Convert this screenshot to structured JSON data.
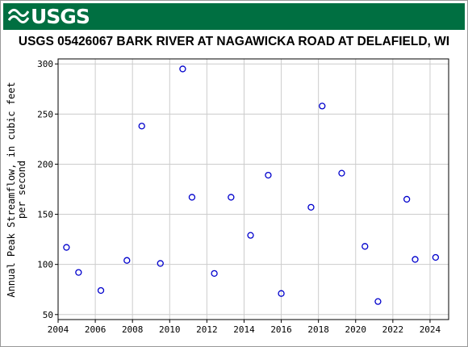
{
  "header": {
    "logo_text": "USGS",
    "brand_color": "#006f41",
    "logo_icon": "usgs-wave-icon"
  },
  "chart_data": {
    "type": "scatter",
    "title": "USGS 05426067 BARK RIVER AT NAGAWICKA ROAD AT DELAFIELD, WI",
    "ylabel_line1": "Annual Peak Streamflow, in cubic feet",
    "ylabel_line2": "per second",
    "xlabel": "",
    "xlim": [
      2004,
      2025
    ],
    "ylim": [
      45,
      305
    ],
    "x_ticks": [
      2004,
      2006,
      2008,
      2010,
      2012,
      2014,
      2016,
      2018,
      2020,
      2022,
      2024
    ],
    "y_ticks": [
      50,
      100,
      150,
      200,
      250,
      300
    ],
    "grid": true,
    "marker": "open-circle",
    "marker_color": "#0000cc",
    "series": [
      {
        "points": [
          [
            2004.45,
            117
          ],
          [
            2005.1,
            92
          ],
          [
            2006.3,
            74
          ],
          [
            2007.7,
            104
          ],
          [
            2008.5,
            238
          ],
          [
            2009.5,
            101
          ],
          [
            2010.7,
            295
          ],
          [
            2011.2,
            167
          ],
          [
            2012.4,
            91
          ],
          [
            2013.3,
            167
          ],
          [
            2014.35,
            129
          ],
          [
            2015.3,
            189
          ],
          [
            2016.0,
            71
          ],
          [
            2017.6,
            157
          ],
          [
            2018.2,
            258
          ],
          [
            2019.25,
            191
          ],
          [
            2020.5,
            118
          ],
          [
            2021.2,
            63
          ],
          [
            2022.75,
            165
          ],
          [
            2023.2,
            105
          ],
          [
            2024.3,
            107
          ]
        ]
      }
    ]
  }
}
